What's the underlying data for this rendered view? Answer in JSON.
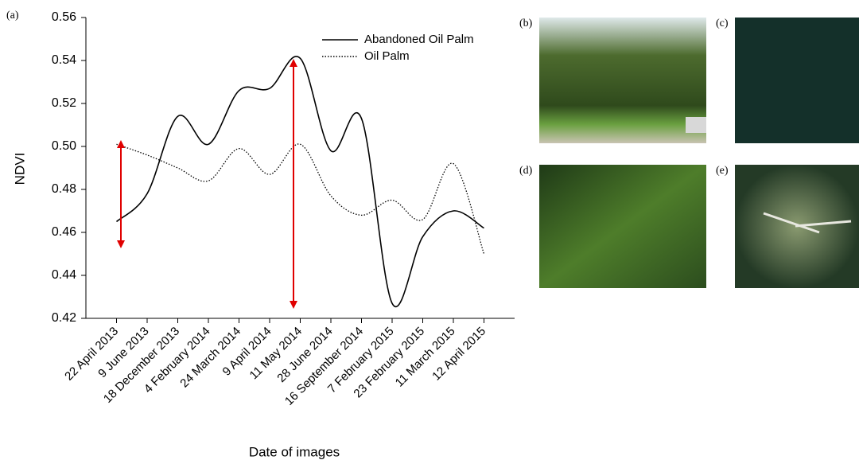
{
  "chart_data": {
    "type": "line",
    "panel_label": "(a)",
    "x_label": "Date of images",
    "y_label": "NDVI",
    "categories": [
      "22 April 2013",
      "9 June 2013",
      "18 December 2013",
      "4 February 2014",
      "24 March 2014",
      "9 April 2014",
      "11 May 2014",
      "28 June 2014",
      "16 September 2014",
      "7 February 2015",
      "23 February 2015",
      "11 March 2015",
      "12 April 2015"
    ],
    "series": [
      {
        "name": "Abandoned Oil Palm",
        "color": "#000000",
        "dash": "solid",
        "values": [
          0.465,
          0.478,
          0.514,
          0.501,
          0.526,
          0.527,
          0.541,
          0.498,
          0.513,
          0.427,
          0.458,
          0.47,
          0.462
        ]
      },
      {
        "name": "Oil Palm",
        "color": "#000000",
        "dash": "dotted",
        "values": [
          0.501,
          0.496,
          0.49,
          0.484,
          0.499,
          0.487,
          0.501,
          0.477,
          0.468,
          0.475,
          0.466,
          0.492,
          0.45
        ]
      }
    ],
    "ylim": [
      0.42,
      0.56
    ],
    "yticks": [
      0.42,
      0.44,
      0.46,
      0.48,
      {
        "value": 0.5,
        "label": "0.50"
      },
      0.52,
      0.54,
      0.56
    ],
    "legend": "upper right",
    "grid": false
  },
  "photos": [
    {
      "label": "(b)"
    },
    {
      "label": "(c)"
    },
    {
      "label": "(d)"
    },
    {
      "label": "(e)"
    }
  ]
}
